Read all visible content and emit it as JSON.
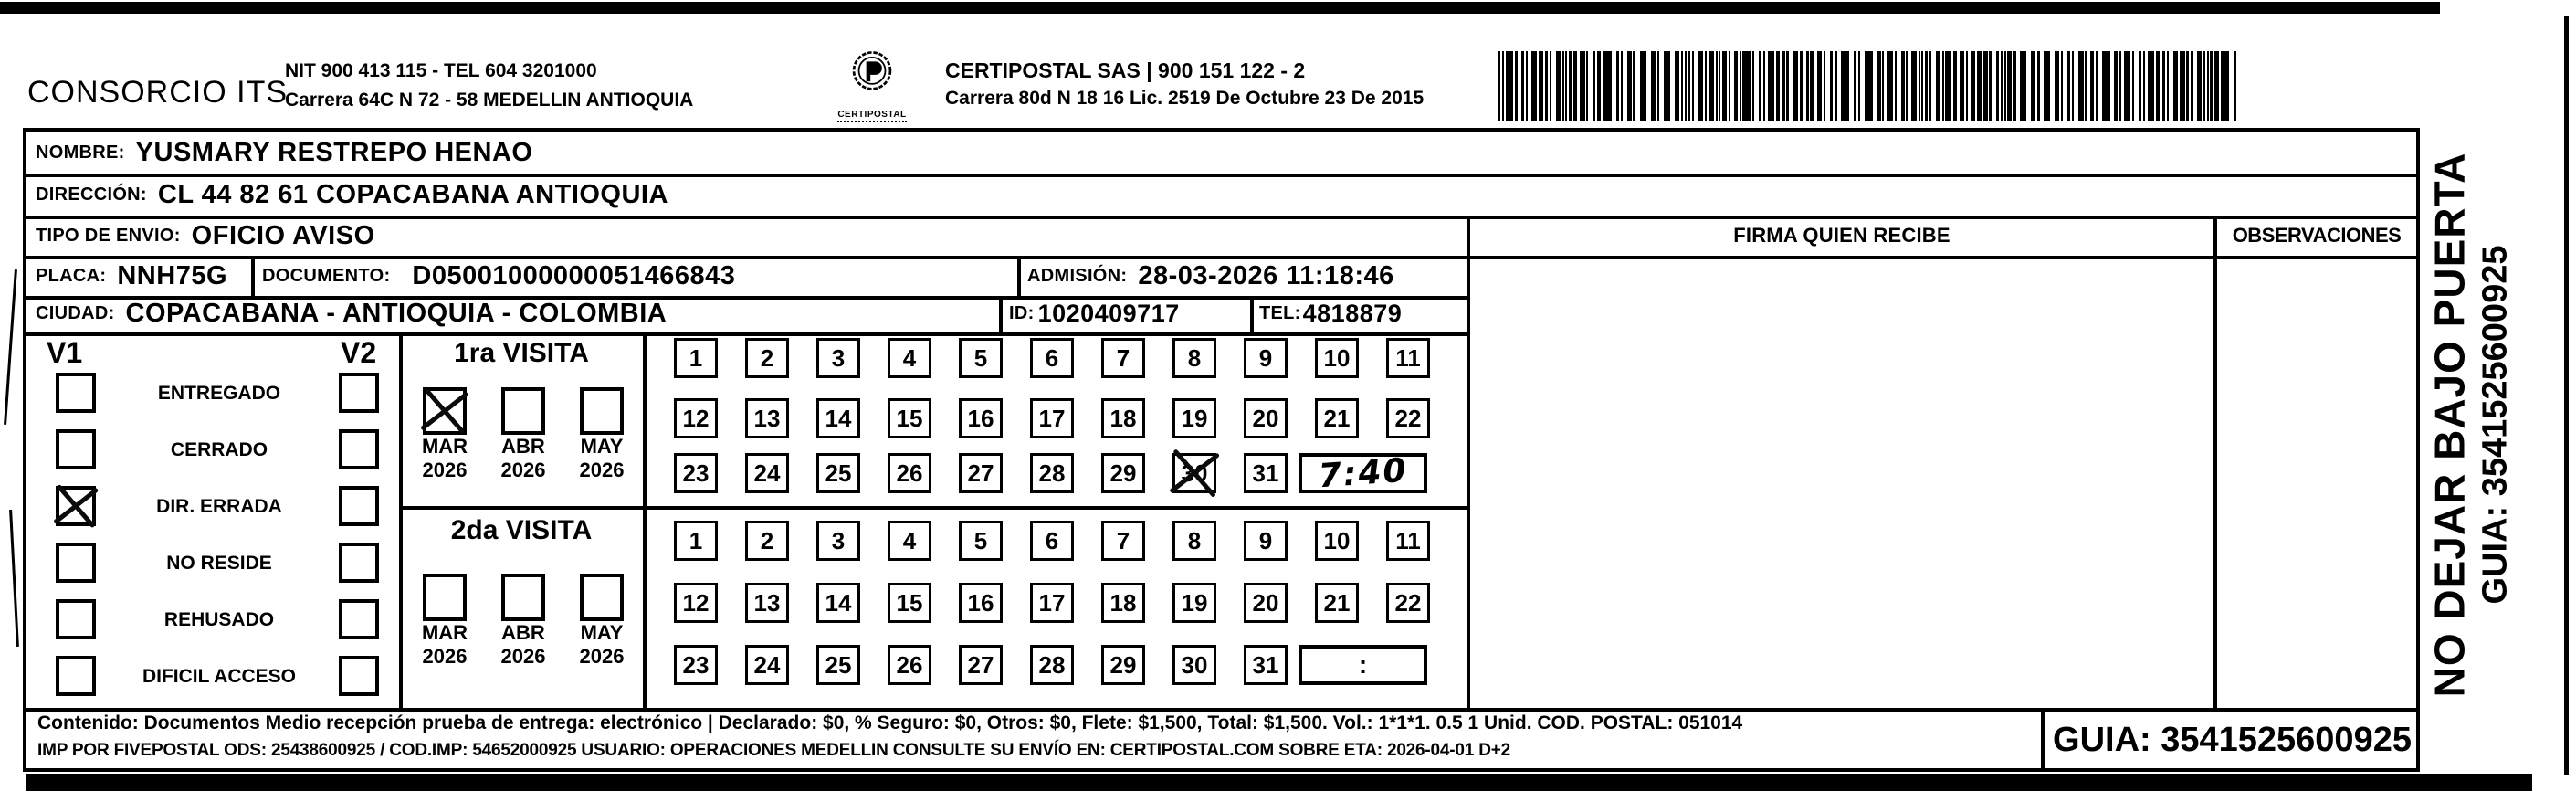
{
  "header": {
    "company": "CONSORCIO ITS",
    "company_nit": "NIT 900 413 115 - TEL 604 3201000",
    "company_address": "Carrera 64C N 72 - 58 MEDELLIN ANTIOQUIA",
    "logo_caption": "CERTIPOSTAL",
    "operator_title": "CERTIPOSTAL SAS | 900 151 122 - 2",
    "operator_address": "Carrera 80d N 18 16  Lic. 2519 De Octubre 23 De 2015"
  },
  "fields": {
    "nombre_label": "NOMBRE:",
    "nombre": "YUSMARY RESTREPO HENAO",
    "direccion_label": "DIRECCIÓN:",
    "direccion": "CL 44 82 61 COPACABANA ANTIOQUIA",
    "tipo_label": "TIPO DE ENVIO:",
    "tipo": "OFICIO AVISO",
    "placa_label": "PLACA:",
    "placa": "NNH75G",
    "documento_label": "DOCUMENTO:",
    "documento": "D05001000000051466843",
    "admision_label": "ADMISIÓN:",
    "admision": "28-03-2026 11:18:46",
    "ciudad_label": "CIUDAD:",
    "ciudad": "COPACABANA - ANTIOQUIA - COLOMBIA",
    "id_label": "ID:",
    "id": "1020409717",
    "tel_label": "TEL:",
    "tel": "4818879"
  },
  "columns": {
    "firma": "FIRMA QUIEN RECIBE",
    "observaciones": "OBSERVACIONES"
  },
  "status_panel": {
    "v1_label": "V1",
    "v2_label": "V2",
    "options": [
      {
        "label": "ENTREGADO",
        "v1_checked": false,
        "v2_checked": false
      },
      {
        "label": "CERRADO",
        "v1_checked": false,
        "v2_checked": false
      },
      {
        "label": "DIR. ERRADA",
        "v1_checked": true,
        "v2_checked": false
      },
      {
        "label": "NO RESIDE",
        "v1_checked": false,
        "v2_checked": false
      },
      {
        "label": "REHUSADO",
        "v1_checked": false,
        "v2_checked": false
      },
      {
        "label": "DIFICIL ACCESO",
        "v1_checked": false,
        "v2_checked": false
      }
    ]
  },
  "calendar": {
    "rows": [
      [
        "1",
        "2",
        "3",
        "4",
        "5",
        "6",
        "7",
        "8",
        "9",
        "10",
        "11"
      ],
      [
        "12",
        "13",
        "14",
        "15",
        "16",
        "17",
        "18",
        "19",
        "20",
        "21",
        "22"
      ],
      [
        "23",
        "24",
        "25",
        "26",
        "27",
        "28",
        "29",
        "30",
        "31"
      ]
    ]
  },
  "visits": [
    {
      "title": "1ra VISITA",
      "months": [
        {
          "month": "MAR",
          "year": "2026",
          "checked": true
        },
        {
          "month": "ABR",
          "year": "2026",
          "checked": false
        },
        {
          "month": "MAY",
          "year": "2026",
          "checked": false
        }
      ],
      "crossed_day": "30",
      "time_value": "7:40",
      "time_handwritten": true
    },
    {
      "title": "2da VISITA",
      "months": [
        {
          "month": "MAR",
          "year": "2026",
          "checked": false
        },
        {
          "month": "ABR",
          "year": "2026",
          "checked": false
        },
        {
          "month": "MAY",
          "year": "2026",
          "checked": false
        }
      ],
      "crossed_day": null,
      "time_value": ":",
      "time_handwritten": false
    }
  ],
  "footer": {
    "line1": "Contenido: Documentos Medio recepción prueba de entrega: electrónico | Declarado: $0, % Seguro: $0, Otros: $0, Flete: $1,500, Total: $1,500. Vol.: 1*1*1. 0.5  1 Unid. COD. POSTAL: 051014",
    "line2": "IMP POR FIVEPOSTAL ODS: 25438600925 / COD.IMP: 54652000925 USUARIO: OPERACIONES MEDELLIN CONSULTE SU ENVÍO EN: CERTIPOSTAL.COM SOBRE ETA: 2026-04-01 D+2",
    "guia": "GUIA: 3541525600925"
  },
  "side": {
    "line1": "NO DEJAR BAJO PUERTA",
    "line2": "GUIA: 3541525600925"
  }
}
